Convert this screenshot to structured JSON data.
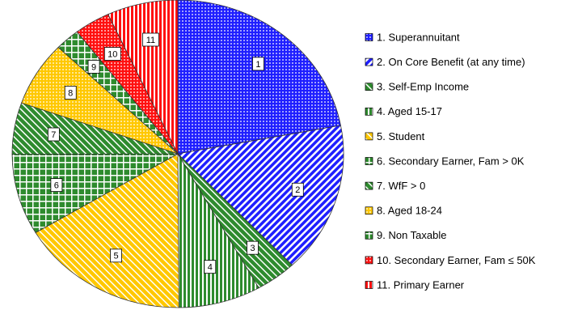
{
  "chart_data": {
    "type": "pie",
    "categories": [
      "1. Superannuitant",
      "2. On Core Benefit (at any time)",
      "3. Self-Emp Income",
      "4. Aged 15-17",
      "5. Student",
      "6. Secondary Earner, Fam > 0K",
      "7. WfF > 0",
      "8. Aged 18-24",
      "9. Non Taxable",
      "10. Secondary Earner, Fam ≤ 50K",
      "11. Primary Earner"
    ],
    "slice_labels": [
      "1",
      "2",
      "3",
      "4",
      "5",
      "6",
      "7",
      "8",
      "9",
      "10",
      "11"
    ],
    "values": [
      22,
      15.8,
      4,
      8,
      16.5,
      8.5,
      5.4,
      6.8,
      2.4,
      3.5,
      6.9
    ],
    "colors": [
      "#1f1fff",
      "#1f1fff",
      "#2e8b2e",
      "#2e8b2e",
      "#ffc800",
      "#2e8b2e",
      "#2e8b2e",
      "#ffc800",
      "#2e8b2e",
      "#ff1010",
      "#ff1010"
    ],
    "patterns": [
      "dots",
      "diagonal",
      "diagonal",
      "vertical",
      "diagonal",
      "grid",
      "diagonal",
      "dots",
      "grid",
      "dots",
      "vertical"
    ],
    "legend": "right"
  }
}
